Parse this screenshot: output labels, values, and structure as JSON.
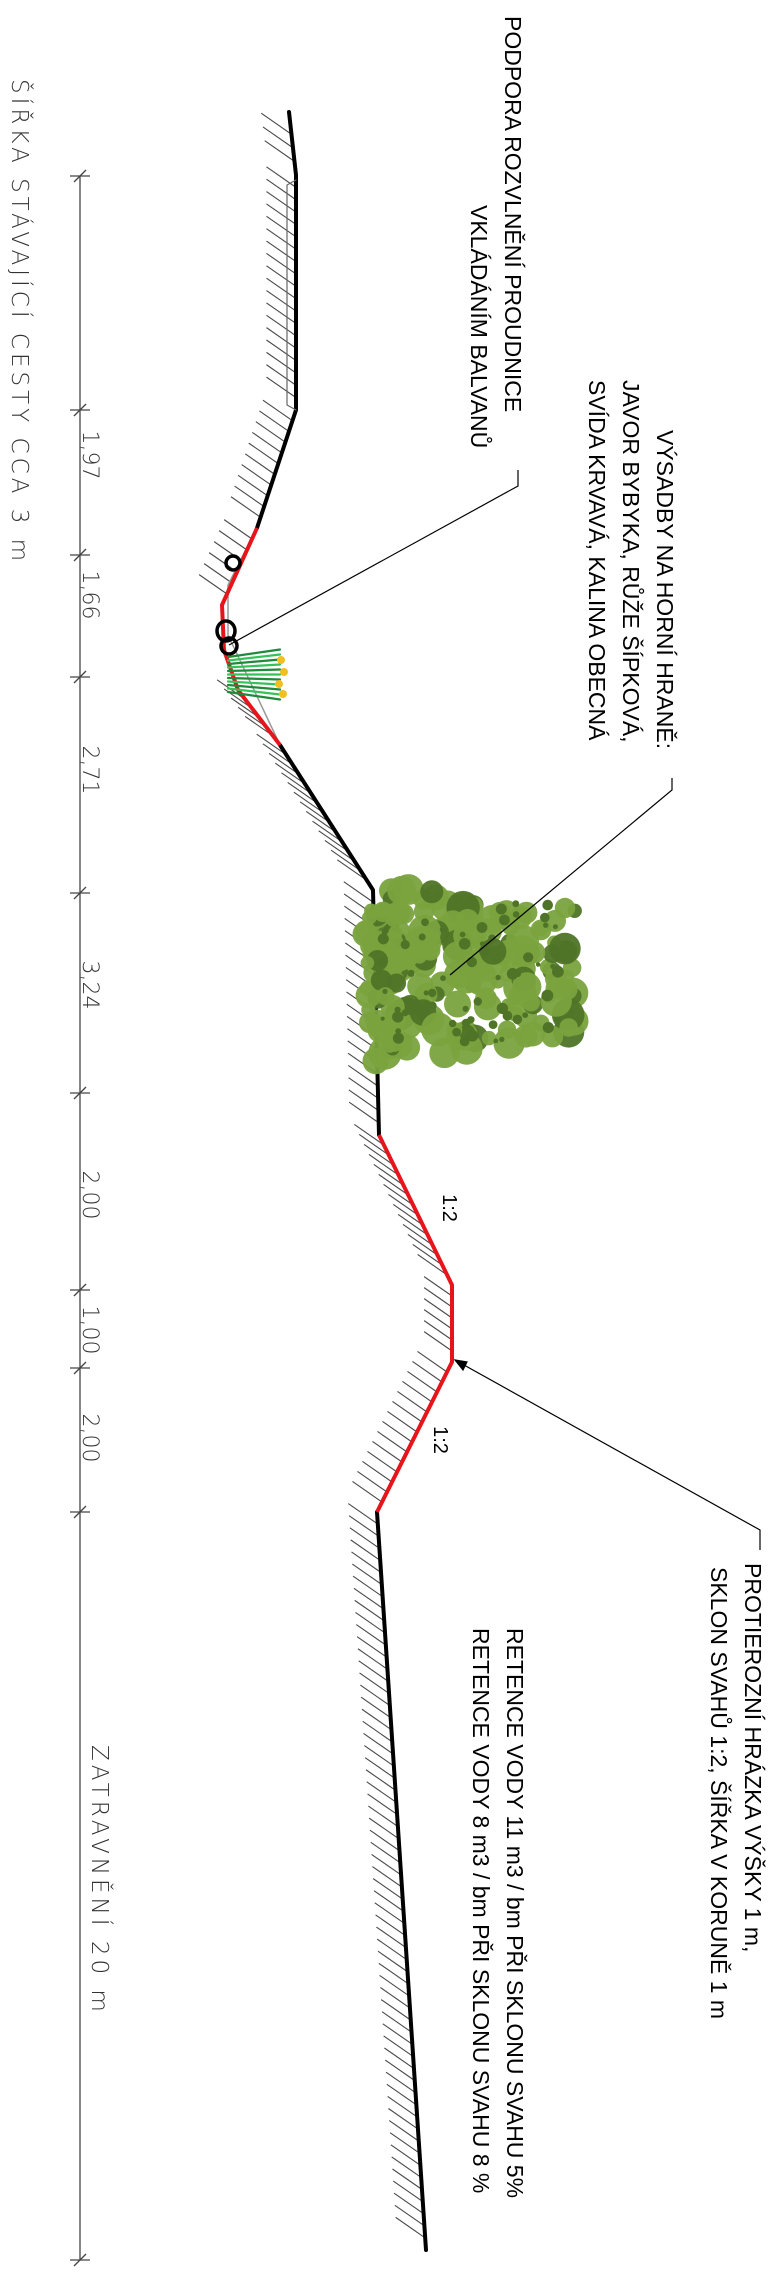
{
  "annotations": {
    "deflector": {
      "line1": "PODPORA ROZVLNĚNÍ PROUDNICE",
      "line2": "VKLÁDÁNÍM BALVANŮ"
    },
    "planting": {
      "line1": "VÝSADBY NA HORNÍ HRANĚ:",
      "line2": "JAVOR BYBYKA, RŮŽE ŠÍPKOVÁ,",
      "line3": "SVÍDA KRVAVÁ, KALINA OBECNÁ"
    },
    "berm": {
      "line1": "PROTIEROZNÍ HRÁZKA VÝŠKY 1 m,",
      "line2": "SKLON SVAHŮ 1:2, ŠÍŘKA V KORUNĚ 1 m"
    },
    "retention": {
      "line1": "RETENCE VODY 11 m3 / bm PŘI SKLONU SVAHU 5%",
      "line2": "RETENCE VODY 8 m3 / bm PŘI SKLONU SVAHU 8 %"
    }
  },
  "slopes": {
    "upper": "1:2",
    "lower": "1:2"
  },
  "dimensions": {
    "path_width_label": "ŠÍŘKA STÁVAJÍCÍ CESTY CCA 3 m",
    "segments": [
      "1,97",
      "1,66",
      "2,71",
      "3,24",
      "2,00",
      "1,00",
      "2,00"
    ],
    "grass_label": "ZATRAVNĚNÍ 20 m"
  },
  "colors": {
    "terrain": "#000000",
    "earthwork": "#e8141b",
    "hatch": "#4a4a4a",
    "foliage": "#7aa33e",
    "foliage_dark": "#4f7427",
    "shrub": "#35c25a",
    "flower": "#f0c020"
  }
}
